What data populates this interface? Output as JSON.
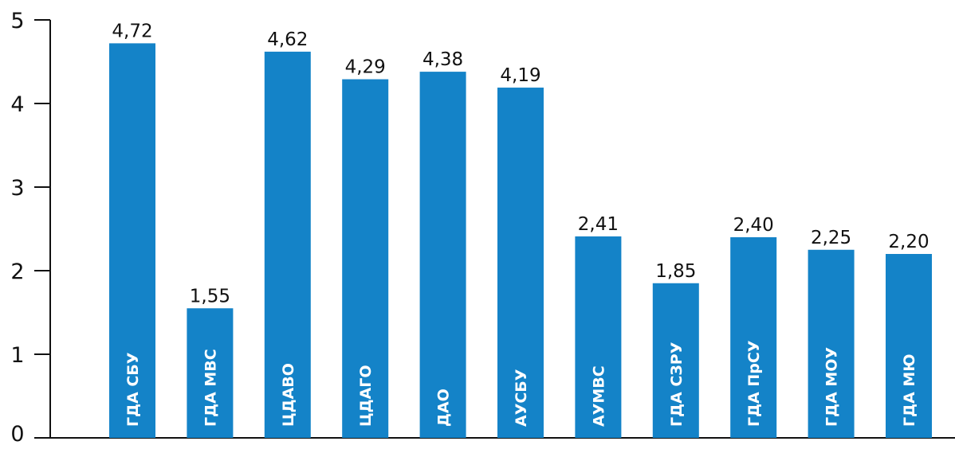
{
  "chart_data": {
    "type": "bar",
    "categories": [
      "ГДА СБУ",
      "ГДА МВС",
      "ЦДАВО",
      "ЦДАГО",
      "ДАО",
      "АУСБУ",
      "АУМВС",
      "ГДА СЗРУ",
      "ГДА ПрСУ",
      "ГДА МОУ",
      "ГДА МЮ"
    ],
    "values": [
      4.72,
      1.55,
      4.62,
      4.29,
      4.38,
      4.19,
      2.41,
      1.85,
      2.4,
      2.25,
      2.2
    ],
    "value_labels": [
      "4,72",
      "1,55",
      "4,62",
      "4,29",
      "4,38",
      "4,19",
      "2,41",
      "1,85",
      "2,40",
      "2,25",
      "2,20"
    ],
    "y_ticks": [
      "0",
      "1",
      "2",
      "3",
      "4",
      "5"
    ],
    "title": "",
    "xlabel": "",
    "ylabel": "",
    "ylim": [
      0,
      5
    ],
    "grid": false,
    "legend": "none",
    "bar_color": "#1483c8",
    "axis_color": "#111111",
    "category_label_placement": "inside-bar-rotated"
  }
}
